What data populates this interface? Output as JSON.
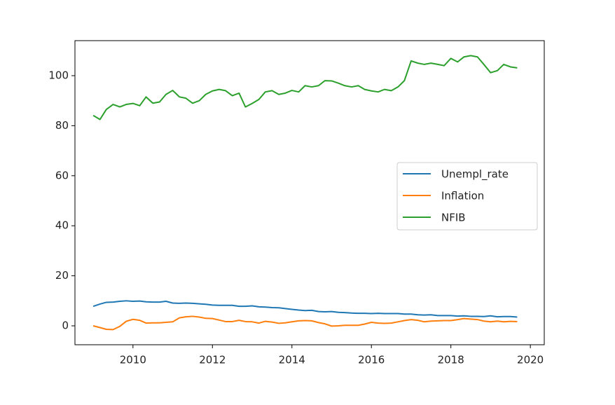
{
  "chart_data": {
    "type": "line",
    "x": [
      2009.0,
      2009.17,
      2009.33,
      2009.5,
      2009.67,
      2009.83,
      2010.0,
      2010.17,
      2010.33,
      2010.5,
      2010.67,
      2010.83,
      2011.0,
      2011.17,
      2011.33,
      2011.5,
      2011.67,
      2011.83,
      2012.0,
      2012.17,
      2012.33,
      2012.5,
      2012.67,
      2012.83,
      2013.0,
      2013.17,
      2013.33,
      2013.5,
      2013.67,
      2013.83,
      2014.0,
      2014.17,
      2014.33,
      2014.5,
      2014.67,
      2014.83,
      2015.0,
      2015.17,
      2015.33,
      2015.5,
      2015.67,
      2015.83,
      2016.0,
      2016.17,
      2016.33,
      2016.5,
      2016.67,
      2016.83,
      2017.0,
      2017.17,
      2017.33,
      2017.5,
      2017.67,
      2017.83,
      2018.0,
      2018.17,
      2018.33,
      2018.5,
      2018.67,
      2018.83,
      2019.0,
      2019.17,
      2019.33,
      2019.5,
      2019.67
    ],
    "series": [
      {
        "name": "Unempl_rate",
        "color": "#1f77b4",
        "values": [
          7.8,
          8.7,
          9.4,
          9.5,
          9.8,
          10.0,
          9.8,
          9.9,
          9.6,
          9.5,
          9.5,
          9.8,
          9.1,
          9.0,
          9.1,
          9.0,
          8.8,
          8.6,
          8.3,
          8.2,
          8.2,
          8.2,
          7.8,
          7.8,
          8.0,
          7.6,
          7.5,
          7.3,
          7.2,
          6.9,
          6.6,
          6.3,
          6.1,
          6.2,
          5.7,
          5.6,
          5.7,
          5.4,
          5.3,
          5.1,
          5.0,
          5.0,
          4.9,
          5.0,
          4.9,
          4.9,
          4.9,
          4.7,
          4.7,
          4.4,
          4.3,
          4.4,
          4.1,
          4.1,
          4.1,
          3.9,
          4.0,
          3.8,
          3.8,
          3.7,
          4.0,
          3.6,
          3.7,
          3.7,
          3.5
        ]
      },
      {
        "name": "Inflation",
        "color": "#ff7f0e",
        "values": [
          0.0,
          -0.7,
          -1.4,
          -1.5,
          -0.2,
          1.8,
          2.6,
          2.2,
          1.1,
          1.2,
          1.2,
          1.4,
          1.6,
          3.2,
          3.6,
          3.8,
          3.5,
          3.0,
          2.9,
          2.3,
          1.7,
          1.7,
          2.2,
          1.7,
          1.6,
          1.1,
          1.8,
          1.5,
          1.0,
          1.2,
          1.6,
          2.0,
          2.1,
          2.0,
          1.3,
          0.8,
          -0.1,
          0.0,
          0.2,
          0.2,
          0.2,
          0.7,
          1.4,
          1.1,
          1.0,
          1.1,
          1.6,
          2.1,
          2.5,
          2.2,
          1.6,
          1.9,
          2.0,
          2.1,
          2.1,
          2.5,
          2.9,
          2.7,
          2.5,
          1.9,
          1.6,
          1.9,
          1.6,
          1.8,
          1.7
        ]
      },
      {
        "name": "NFIB",
        "color": "#2ca02c",
        "values": [
          84.1,
          82.5,
          86.5,
          88.5,
          87.5,
          88.5,
          88.9,
          88.0,
          91.5,
          89.0,
          89.5,
          92.5,
          94.1,
          91.5,
          91.0,
          89.0,
          90.0,
          92.5,
          93.9,
          94.5,
          94.0,
          92.0,
          93.0,
          87.5,
          88.9,
          90.5,
          93.5,
          94.0,
          92.5,
          93.0,
          94.1,
          93.5,
          96.0,
          95.5,
          96.0,
          98.0,
          97.9,
          97.0,
          96.0,
          95.5,
          96.0,
          94.5,
          93.9,
          93.5,
          94.5,
          94.0,
          95.5,
          98.0,
          105.9,
          105.0,
          104.5,
          105.0,
          104.5,
          104.0,
          106.9,
          105.5,
          107.5,
          108.0,
          107.5,
          104.5,
          101.2,
          102.0,
          104.5,
          103.5,
          103.1
        ]
      }
    ],
    "xlim": [
      2008.54,
      2020.35
    ],
    "xticks": [
      2010,
      2012,
      2014,
      2016,
      2018,
      2020
    ],
    "ylim": [
      -7.56,
      114
    ],
    "yticks": [
      0,
      20,
      40,
      60,
      80,
      100
    ],
    "legend": "center right"
  }
}
